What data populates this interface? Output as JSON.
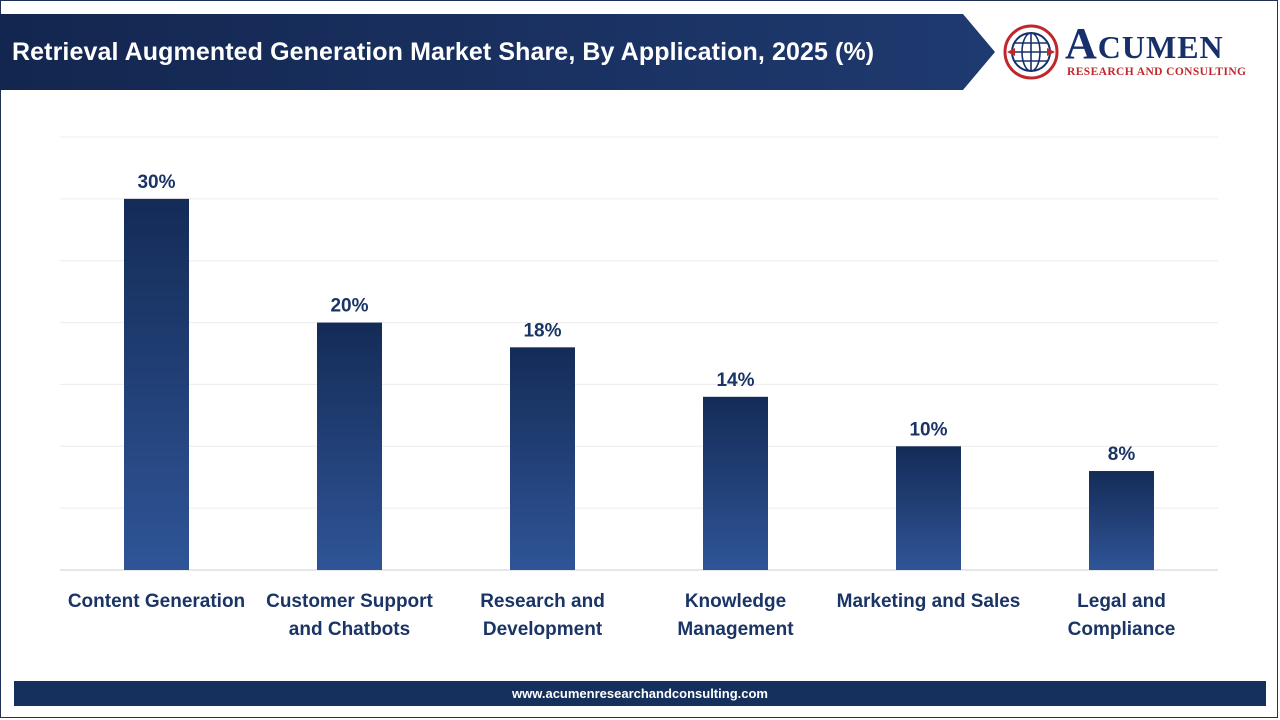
{
  "header": {
    "title": "Retrieval Augmented Generation Market Share, By Application, 2025 (%)"
  },
  "logo": {
    "name_first": "A",
    "name_rest": "CUMEN",
    "tagline": "RESEARCH AND CONSULTING"
  },
  "footer": {
    "url": "www.acumenresearchandconsulting.com"
  },
  "colors": {
    "header_bg": "#1a2f5e",
    "bar_top": "#142b57",
    "bar_bottom": "#2f5597",
    "label_text": "#1b3466",
    "logo_red": "#c0272d"
  },
  "chart_data": {
    "type": "bar",
    "title": "Retrieval Augmented Generation Market Share, By Application, 2025 (%)",
    "categories": [
      [
        "Content Generation"
      ],
      [
        "Customer Support",
        "and Chatbots"
      ],
      [
        "Research and",
        "Development"
      ],
      [
        "Knowledge",
        "Management"
      ],
      [
        "Marketing and Sales"
      ],
      [
        "Legal and",
        "Compliance"
      ]
    ],
    "values": [
      30,
      20,
      18,
      14,
      10,
      8
    ],
    "value_labels": [
      "30%",
      "20%",
      "18%",
      "14%",
      "10%",
      "8%"
    ],
    "ylim": [
      0,
      35
    ],
    "grid": true,
    "legend": "none"
  }
}
